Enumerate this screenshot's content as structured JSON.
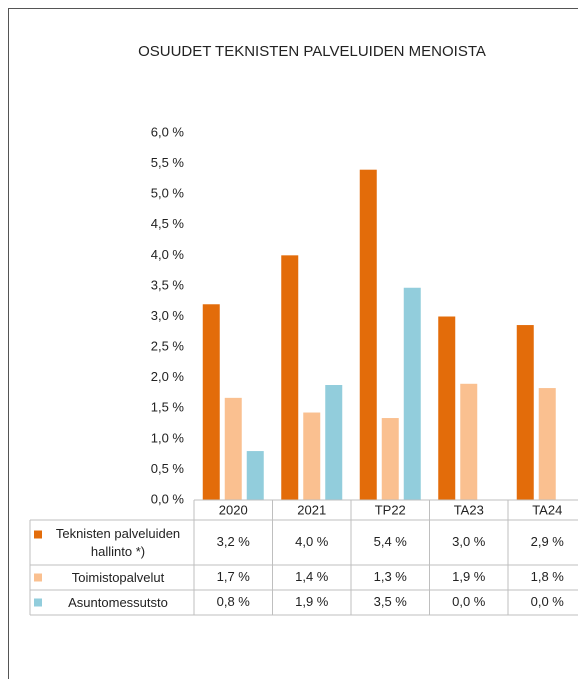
{
  "chart_data": {
    "type": "bar",
    "title": "OSUUDET TEKNISTEN PALVELUIDEN MENOISTA",
    "categories": [
      "2020",
      "2021",
      "TP22",
      "TA23",
      "TA24"
    ],
    "series": [
      {
        "name": "Teknisten palveluiden hallinto *)",
        "color": "#e36c0a",
        "values": [
          3.2,
          4.0,
          5.4,
          3.0,
          2.86
        ],
        "value_labels": [
          "3,2 %",
          "4,0 %",
          "5,4 %",
          "3,0 %",
          "2,9 %"
        ]
      },
      {
        "name": "Toimistopalvelut",
        "color": "#fac090",
        "values": [
          1.67,
          1.43,
          1.34,
          1.9,
          1.83
        ],
        "value_labels": [
          "1,7 %",
          "1,4 %",
          "1,3 %",
          "1,9 %",
          "1,8 %"
        ]
      },
      {
        "name": "Asuntomessutsto",
        "color": "#92cddc",
        "values": [
          0.8,
          1.88,
          3.47,
          0.0,
          0.0
        ],
        "value_labels": [
          "0,8 %",
          "1,9 %",
          "3,5 %",
          "0,0 %",
          "0,0 %"
        ]
      }
    ],
    "ylim": [
      0,
      6
    ],
    "yticks": [
      {
        "value": 0,
        "label": "0,0 %"
      },
      {
        "value": 0.5,
        "label": "0,5 %"
      },
      {
        "value": 1,
        "label": "1,0 %"
      },
      {
        "value": 1.5,
        "label": "1,5 %"
      },
      {
        "value": 2,
        "label": "2,0 %"
      },
      {
        "value": 2.5,
        "label": "2,5 %"
      },
      {
        "value": 3,
        "label": "3,0 %"
      },
      {
        "value": 3.5,
        "label": "3,5 %"
      },
      {
        "value": 4,
        "label": "4,0 %"
      },
      {
        "value": 4.5,
        "label": "4,5 %"
      },
      {
        "value": 5,
        "label": "5,0 %"
      },
      {
        "value": 5.5,
        "label": "5,5 %"
      },
      {
        "value": 6,
        "label": "6,0 %"
      }
    ]
  }
}
